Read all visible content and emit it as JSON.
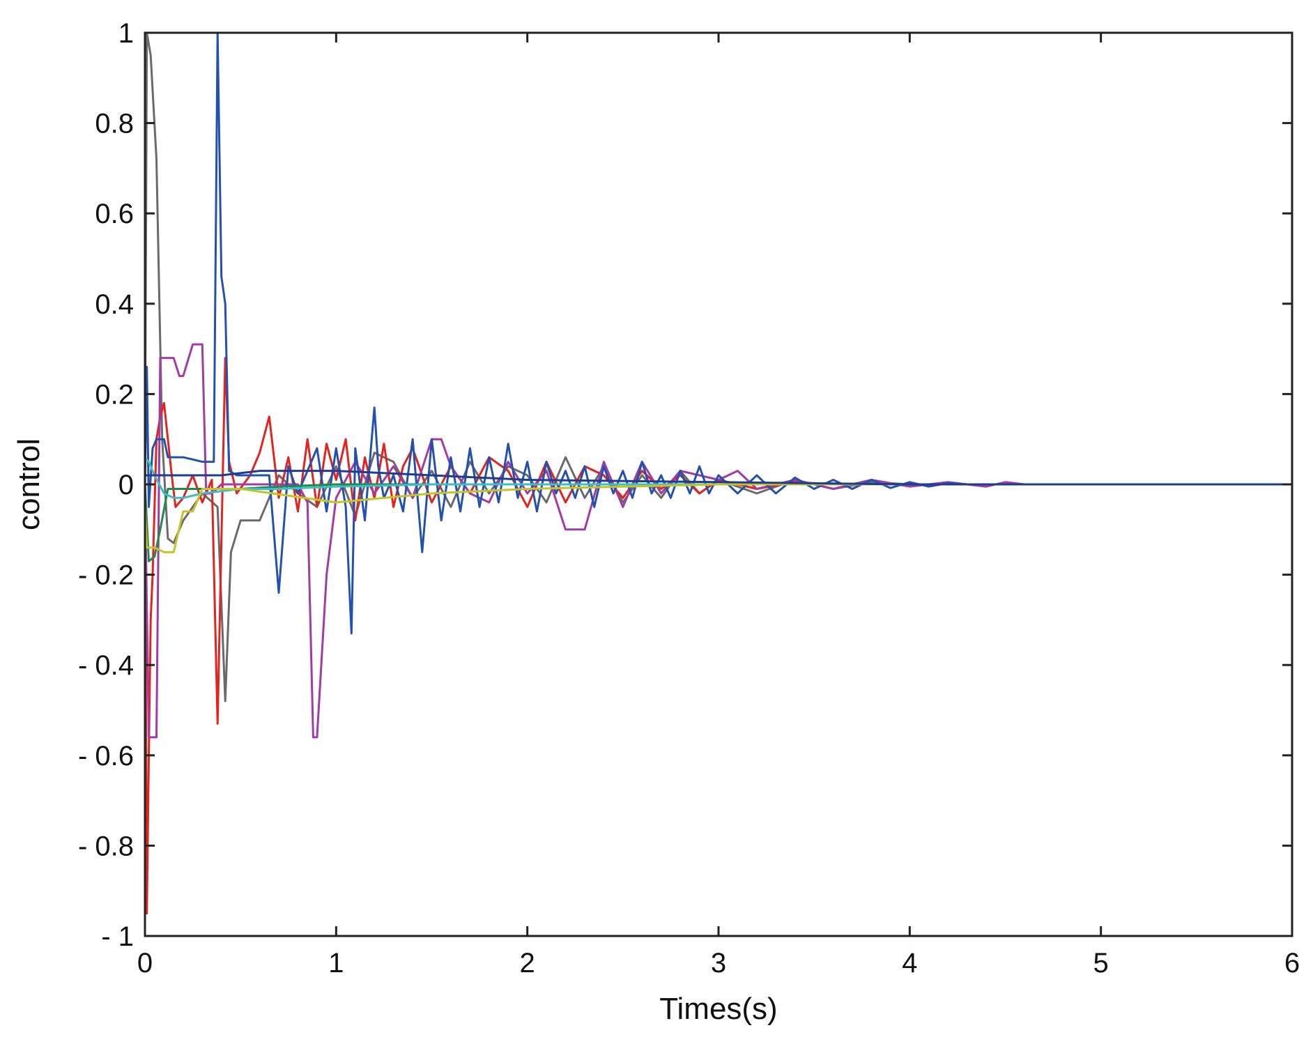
{
  "chart_data": {
    "type": "line",
    "title": "",
    "xlabel": "Times(s)",
    "ylabel": "control",
    "xlim": [
      0,
      6
    ],
    "ylim": [
      -1,
      1
    ],
    "xticks": [
      0,
      1,
      2,
      3,
      4,
      5,
      6
    ],
    "xtick_labels": [
      "0",
      "1",
      "2",
      "3",
      "4",
      "5",
      "6"
    ],
    "yticks": [
      1,
      0.8,
      0.6,
      0.4,
      0.2,
      0,
      -0.2,
      -0.4,
      -0.6,
      -0.8,
      -1
    ],
    "ytick_labels": [
      "1",
      "0.8",
      "0.6",
      "0.4",
      "0.2",
      "0",
      "- 0.2",
      "- 0.4",
      "- 0.6",
      "- 0.8",
      "- 1"
    ],
    "grid": false,
    "legend": "none",
    "series": [
      {
        "color": "#6a6a6a",
        "x": [
          0,
          0.01,
          0.03,
          0.06,
          0.09,
          0.12,
          0.15,
          0.2,
          0.3,
          0.38,
          0.42,
          0.45,
          0.5,
          0.6,
          0.7,
          0.8,
          0.9,
          1.0,
          1.1,
          1.2,
          1.3,
          1.4,
          1.5,
          1.6,
          1.7,
          1.8,
          1.9,
          2.0,
          2.1,
          2.2,
          2.3,
          2.4,
          2.5,
          2.6,
          2.7,
          2.8,
          2.9,
          3.0,
          3.2,
          3.4,
          3.6,
          3.8,
          4.0,
          4.5,
          5.0,
          6.0
        ],
        "y": [
          0,
          1.0,
          0.95,
          0.72,
          0.1,
          -0.12,
          -0.13,
          -0.08,
          -0.02,
          -0.05,
          -0.48,
          -0.15,
          -0.08,
          -0.08,
          0.02,
          -0.02,
          -0.05,
          0.04,
          -0.07,
          0.07,
          0.05,
          -0.03,
          0.03,
          -0.05,
          0.05,
          -0.02,
          0.04,
          0.02,
          -0.04,
          0.06,
          -0.03,
          0.04,
          -0.04,
          0.02,
          -0.03,
          0.03,
          -0.02,
          0.01,
          -0.02,
          0.01,
          -0.01,
          0.005,
          0,
          0,
          0,
          0
        ]
      },
      {
        "color": "#e3231e",
        "x": [
          0,
          0.01,
          0.02,
          0.03,
          0.04,
          0.06,
          0.08,
          0.1,
          0.14,
          0.16,
          0.2,
          0.25,
          0.3,
          0.35,
          0.38,
          0.42,
          0.44,
          0.48,
          0.55,
          0.6,
          0.65,
          0.7,
          0.75,
          0.8,
          0.85,
          0.9,
          0.95,
          1.0,
          1.05,
          1.1,
          1.15,
          1.2,
          1.25,
          1.3,
          1.35,
          1.4,
          1.5,
          1.6,
          1.7,
          1.8,
          1.9,
          2.0,
          2.1,
          2.2,
          2.3,
          2.4,
          2.5,
          2.6,
          2.7,
          2.8,
          2.9,
          3.0,
          3.2,
          3.4,
          3.6,
          3.8,
          4.0,
          4.5,
          6.0
        ],
        "y": [
          0,
          -0.95,
          -0.6,
          -0.3,
          -0.2,
          0.1,
          0.15,
          0.18,
          0.02,
          -0.05,
          -0.03,
          0.02,
          -0.04,
          0.01,
          -0.53,
          0.28,
          0.05,
          -0.02,
          0.02,
          0.07,
          0.15,
          -0.03,
          0.06,
          -0.06,
          0.1,
          -0.05,
          0.09,
          0.01,
          0.1,
          -0.08,
          0.06,
          -0.03,
          0.09,
          -0.05,
          0.04,
          0.08,
          -0.04,
          0.04,
          -0.02,
          0.06,
          0.03,
          -0.05,
          0.05,
          -0.04,
          0.04,
          0.02,
          -0.03,
          0.03,
          -0.01,
          0.02,
          -0.02,
          0.01,
          -0.01,
          0.005,
          0,
          0,
          0,
          0,
          0
        ]
      },
      {
        "color": "#a23ba3",
        "x": [
          0,
          0.02,
          0.04,
          0.06,
          0.08,
          0.1,
          0.15,
          0.18,
          0.2,
          0.25,
          0.3,
          0.32,
          0.35,
          0.4,
          0.5,
          0.6,
          0.7,
          0.8,
          0.85,
          0.88,
          0.9,
          0.95,
          1.0,
          1.1,
          1.2,
          1.3,
          1.4,
          1.5,
          1.55,
          1.6,
          1.7,
          1.8,
          1.9,
          2.0,
          2.1,
          2.2,
          2.3,
          2.4,
          2.5,
          2.6,
          2.7,
          2.8,
          2.9,
          3.0,
          3.1,
          3.2,
          3.4,
          3.6,
          3.8,
          4.0,
          4.2,
          4.4,
          4.5,
          4.6,
          6.0
        ],
        "y": [
          0,
          -0.56,
          -0.56,
          -0.56,
          0.28,
          0.28,
          0.28,
          0.24,
          0.24,
          0.31,
          0.31,
          -0.02,
          -0.02,
          0,
          0,
          0,
          0,
          0,
          -0.04,
          -0.56,
          -0.56,
          -0.2,
          -0.03,
          0.05,
          -0.02,
          0.04,
          -0.03,
          0.1,
          0.1,
          0.04,
          -0.02,
          -0.04,
          0.05,
          -0.02,
          0.03,
          -0.1,
          -0.1,
          0.05,
          -0.05,
          0.05,
          -0.02,
          0.03,
          0.02,
          0.01,
          0.03,
          -0.01,
          0.01,
          -0.01,
          0.01,
          -0.005,
          0.005,
          -0.005,
          0.005,
          0,
          0
        ]
      },
      {
        "color": "#2451b0",
        "x": [
          0,
          0.01,
          0.02,
          0.04,
          0.06,
          0.08,
          0.1,
          0.12,
          0.2,
          0.3,
          0.36,
          0.38,
          0.4,
          0.42,
          0.44,
          0.48,
          0.55,
          0.6,
          0.65,
          0.7,
          0.75,
          0.8,
          0.85,
          0.9,
          0.95,
          1.0,
          1.05,
          1.08,
          1.1,
          1.15,
          1.2,
          1.22,
          1.25,
          1.3,
          1.35,
          1.4,
          1.45,
          1.5,
          1.55,
          1.6,
          1.65,
          1.7,
          1.75,
          1.8,
          1.85,
          1.9,
          1.95,
          2.0,
          2.05,
          2.1,
          2.15,
          2.2,
          2.25,
          2.3,
          2.35,
          2.4,
          2.45,
          2.5,
          2.55,
          2.6,
          2.65,
          2.7,
          2.75,
          2.8,
          2.85,
          2.9,
          2.95,
          3.0,
          3.1,
          3.2,
          3.3,
          3.4,
          3.5,
          3.6,
          3.7,
          3.8,
          3.9,
          4.0,
          4.1,
          4.2,
          4.3,
          4.4,
          4.5,
          6.0
        ],
        "y": [
          0,
          0.26,
          -0.05,
          0.08,
          0.1,
          0.1,
          0.1,
          0.06,
          0.06,
          0.05,
          0.05,
          1.0,
          0.46,
          0.4,
          0.03,
          0.02,
          0.02,
          0.02,
          0.02,
          -0.24,
          0.04,
          -0.02,
          0.03,
          0.08,
          -0.06,
          0.08,
          -0.05,
          -0.33,
          0.08,
          -0.08,
          0.17,
          0.04,
          -0.03,
          0.02,
          -0.06,
          0.1,
          -0.15,
          0.1,
          -0.08,
          0.06,
          -0.06,
          0.08,
          -0.05,
          0.06,
          -0.04,
          0.09,
          -0.03,
          0.05,
          -0.06,
          0.05,
          -0.02,
          0.03,
          -0.03,
          0.04,
          -0.05,
          0.04,
          -0.02,
          0.03,
          -0.03,
          0.05,
          -0.02,
          0.02,
          -0.03,
          0.03,
          -0.02,
          0.04,
          -0.02,
          0.02,
          -0.02,
          0.02,
          -0.02,
          0.015,
          -0.01,
          0.01,
          -0.01,
          0.01,
          -0.008,
          0.005,
          -0.005,
          0.003,
          0,
          0,
          0,
          0
        ]
      },
      {
        "color": "#1f8a4a",
        "x": [
          0,
          0.02,
          0.05,
          0.08,
          0.12,
          0.2,
          0.3,
          0.5,
          0.7,
          1.0,
          1.5,
          2.0,
          3.0,
          4.0,
          6.0
        ],
        "y": [
          0,
          -0.17,
          -0.16,
          -0.1,
          -0.01,
          -0.01,
          -0.01,
          -0.01,
          -0.005,
          0,
          0,
          0,
          0,
          0,
          0
        ]
      },
      {
        "color": "#3bbfc7",
        "x": [
          0,
          0.02,
          0.05,
          0.1,
          0.15,
          0.2,
          0.3,
          0.5,
          0.7,
          1.0,
          1.5,
          2.0,
          3.0,
          6.0
        ],
        "y": [
          0.06,
          0.05,
          0.02,
          -0.02,
          -0.03,
          -0.03,
          -0.02,
          -0.01,
          -0.01,
          -0.005,
          0,
          0,
          0,
          0
        ]
      },
      {
        "color": "#c4c42a",
        "x": [
          0,
          0.01,
          0.05,
          0.1,
          0.15,
          0.2,
          0.25,
          0.3,
          0.5,
          1.0,
          1.5,
          2.0,
          2.5,
          3.0,
          6.0
        ],
        "y": [
          -0.05,
          -0.14,
          -0.14,
          -0.15,
          -0.15,
          -0.06,
          -0.06,
          -0.01,
          -0.01,
          -0.04,
          -0.02,
          -0.01,
          -0.005,
          0,
          0
        ]
      },
      {
        "color": "#1f3c8f",
        "x": [
          0,
          0.05,
          0.1,
          0.2,
          0.4,
          0.6,
          1.0,
          1.5,
          2.0,
          3.0,
          4.0,
          6.0
        ],
        "y": [
          0.02,
          0.02,
          0.02,
          0.02,
          0.02,
          0.03,
          0.03,
          0.02,
          0.01,
          0.005,
          0,
          0
        ]
      }
    ]
  }
}
